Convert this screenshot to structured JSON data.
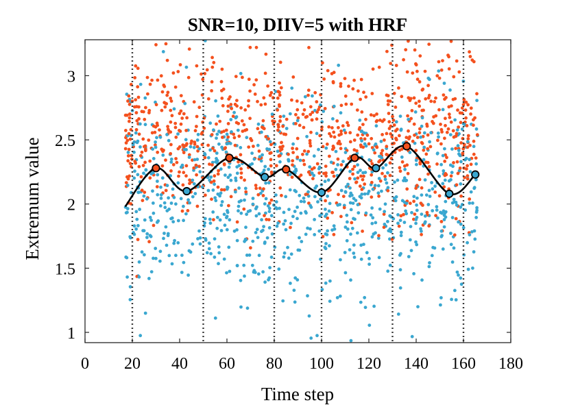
{
  "chart_data": {
    "type": "scatter",
    "title": "SNR=10, DIIV=5 with HRF",
    "xlabel": "Time step",
    "ylabel": "Extremum value",
    "xlim": [
      0,
      180
    ],
    "ylim": [
      0.92,
      3.28
    ],
    "xticks": [
      0,
      20,
      40,
      60,
      80,
      100,
      120,
      140,
      160,
      180
    ],
    "yticks": [
      1,
      1.5,
      2,
      2.5,
      3
    ],
    "xtick_labels": [
      "0",
      "20",
      "40",
      "60",
      "80",
      "100",
      "120",
      "140",
      "160",
      "180"
    ],
    "ytick_labels": [
      "1",
      "1.5",
      "2",
      "2.5",
      "3"
    ],
    "grid": false,
    "block_boundaries": [
      20,
      50,
      80,
      100,
      130,
      160
    ],
    "colors": {
      "maxima": "#f4511e",
      "minima": "#3aa7d0",
      "mean_line": "#000000"
    },
    "point_series": [
      {
        "color": "maxima",
        "x_range": [
          17,
          166
        ],
        "y_mean": 2.5,
        "y_sd": 0.32
      },
      {
        "color": "minima",
        "x_range": [
          17,
          166
        ],
        "y_mean": 2.05,
        "y_sd": 0.38
      }
    ],
    "mean_line": {
      "x": [
        17,
        30,
        43,
        61,
        76,
        85,
        100,
        114,
        123,
        136,
        154,
        165
      ],
      "y": [
        1.98,
        2.28,
        2.1,
        2.36,
        2.21,
        2.27,
        2.09,
        2.36,
        2.28,
        2.45,
        2.08,
        2.23
      ]
    },
    "extrema_markers": {
      "x": [
        30,
        43,
        61,
        76,
        85,
        100,
        114,
        123,
        136,
        154,
        165
      ],
      "y": [
        2.28,
        2.1,
        2.36,
        2.21,
        2.27,
        2.09,
        2.36,
        2.28,
        2.45,
        2.08,
        2.23
      ],
      "fills": [
        "maxima",
        "minima",
        "maxima",
        "minima",
        "maxima",
        "minima",
        "maxima",
        "minima",
        "maxima",
        "minima",
        "minima"
      ]
    }
  }
}
